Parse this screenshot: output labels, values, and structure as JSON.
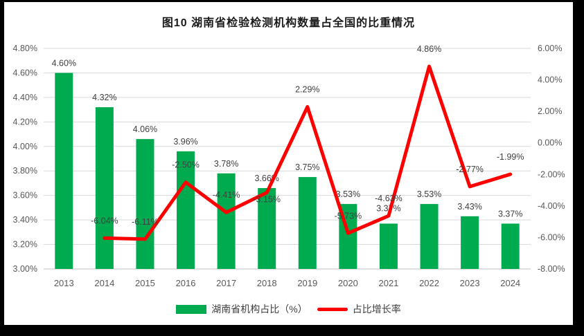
{
  "frame": {
    "border_color": "#000000",
    "background": "#FFFFFF"
  },
  "colors": {
    "bar": "#00AB50",
    "line": "#FE0000",
    "gridline": "#D9D9D9",
    "axis_line": "#BFBFBF",
    "axis_text": "#595959",
    "data_label_text": "#404040",
    "title_text": "#1A1A1A"
  },
  "chart_data": {
    "type": "combo_bar_line",
    "title": "图10  湖南省检验检测机构数量占全国的比重情况",
    "categories": [
      "2013",
      "2014",
      "2015",
      "2016",
      "2017",
      "2018",
      "2019",
      "2020",
      "2021",
      "2022",
      "2023",
      "2024"
    ],
    "series": [
      {
        "name": "湖南省机构占比（%）",
        "chart_type": "bar",
        "axis": "left",
        "color": "#00AB50",
        "values": [
          4.6,
          4.32,
          4.06,
          3.96,
          3.78,
          3.66,
          3.75,
          3.53,
          3.37,
          3.53,
          3.43,
          3.37
        ],
        "data_labels": [
          "4.60%",
          "4.32%",
          "4.06%",
          "3.96%",
          "3.78%",
          "3.66%",
          "3.75%",
          "3.53%",
          "3.37%",
          "3.53%",
          "3.43%",
          "3.37%"
        ]
      },
      {
        "name": "占比增长率",
        "chart_type": "line",
        "axis": "right",
        "color": "#FE0000",
        "values": [
          null,
          -6.04,
          -6.11,
          -2.5,
          -4.41,
          -3.15,
          2.29,
          -5.73,
          -4.63,
          4.86,
          -2.77,
          -1.99
        ],
        "data_labels": [
          null,
          "-6.04%",
          "-6.11%",
          "-2.50%",
          "-4.41%",
          "-3.15%",
          "2.29%",
          "-5.73%",
          "-4.63%",
          "4.86%",
          "-2.77%",
          "-1.99%"
        ]
      }
    ],
    "axes": {
      "left": {
        "min": 3.0,
        "max": 4.8,
        "step": 0.2,
        "tick_labels": [
          "4.80%",
          "4.60%",
          "4.40%",
          "4.20%",
          "4.00%",
          "3.80%",
          "3.60%",
          "3.40%",
          "3.20%",
          "3.00%"
        ]
      },
      "right": {
        "min": -8.0,
        "max": 6.0,
        "step": 2.0,
        "tick_labels": [
          "6.00%",
          "4.00%",
          "2.00%",
          "0.00%",
          "-2.00%",
          "-4.00%",
          "-6.00%",
          "-8.00%"
        ]
      }
    },
    "grid": true,
    "legend_position": "bottom"
  }
}
